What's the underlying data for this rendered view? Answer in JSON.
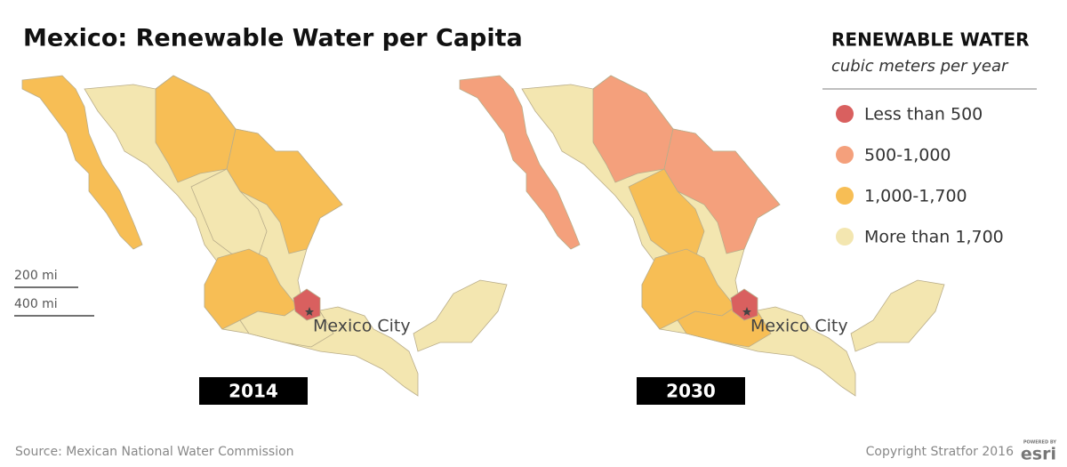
{
  "title": "Mexico: Renewable Water per Capita",
  "legend": {
    "title": "RENEWABLE WATER",
    "subtitle": "cubic meters per year",
    "items": [
      {
        "label": "Less than 500",
        "color": "#d9605f"
      },
      {
        "label": "500-1,000",
        "color": "#f4a07c"
      },
      {
        "label": "1,000-1,700",
        "color": "#f7be55"
      },
      {
        "label": "More than 1,700",
        "color": "#f3e6b0"
      }
    ]
  },
  "scale": [
    "200 mi",
    "400 mi"
  ],
  "maps": [
    {
      "year": "2014",
      "city_label": "Mexico City"
    },
    {
      "year": "2030",
      "city_label": "Mexico City"
    }
  ],
  "source": "Source: Mexican National Water Commission",
  "copyright": "Copyright Stratfor 2016",
  "logo": {
    "top": "POWERED BY",
    "name": "esri"
  }
}
